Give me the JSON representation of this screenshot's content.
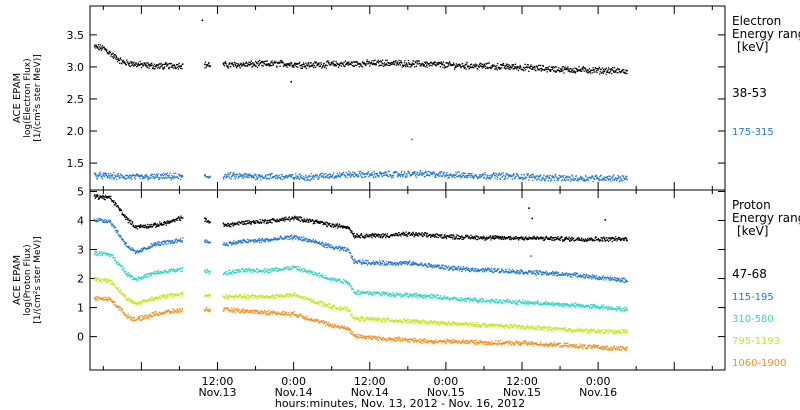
{
  "chart_data": {
    "type": "scatter",
    "xlabel": "hours:minutes, Nov. 13, 2012 - Nov. 16, 2012",
    "x_unit": "hours since Nov.13 00:00",
    "xlim": [
      -8.1,
      92.0
    ],
    "x_ticks": [
      {
        "t": 12,
        "time": "12:00",
        "day": "Nov.13"
      },
      {
        "t": 24,
        "time": "0:00",
        "day": "Nov.14"
      },
      {
        "t": 36,
        "time": "12:00",
        "day": "Nov.14"
      },
      {
        "t": 48,
        "time": "0:00",
        "day": "Nov.15"
      },
      {
        "t": 60,
        "time": "12:00",
        "day": "Nov.15"
      },
      {
        "t": 72,
        "time": "0:00",
        "day": "Nov.16"
      }
    ],
    "panels": [
      {
        "name": "electron",
        "ylabel_lines": [
          "ACE EPAM",
          "log(Electron Flux)",
          "[1/(cm²s ster MeV)]"
        ],
        "ylim": [
          1.08,
          3.95
        ],
        "yticks": [
          "1.5",
          "2.0",
          "2.5",
          "3.0",
          "3.5"
        ],
        "legend_title": [
          "Electron",
          "Energy ranges",
          "[keV]"
        ],
        "series": [
          {
            "name": "38-53",
            "color": "#000000",
            "data": [
              [
                -7.5,
                3.32
              ],
              [
                -6,
                3.3
              ],
              [
                -4.5,
                3.18
              ],
              [
                -3,
                3.08
              ],
              [
                -1,
                3.05
              ],
              [
                1,
                3.03
              ],
              [
                3,
                3.02
              ],
              [
                5,
                3.03
              ],
              [
                8,
                3.04
              ],
              [
                14,
                3.04
              ],
              [
                18,
                3.05
              ],
              [
                22,
                3.06
              ],
              [
                26,
                3.04
              ],
              [
                30,
                3.05
              ],
              [
                34,
                3.06
              ],
              [
                38,
                3.07
              ],
              [
                42,
                3.06
              ],
              [
                46,
                3.05
              ],
              [
                50,
                3.03
              ],
              [
                54,
                3.02
              ],
              [
                58,
                3.01
              ],
              [
                62,
                2.99
              ],
              [
                66,
                2.97
              ],
              [
                70,
                2.96
              ],
              [
                74,
                2.95
              ],
              [
                76.5,
                2.94
              ]
            ],
            "outliers": [
              [
                9.5,
                3.74
              ],
              [
                23.5,
                2.78
              ]
            ],
            "gaps": [
              [
                6.5,
                9.8
              ],
              [
                10.8,
                12.8
              ]
            ]
          },
          {
            "name": "175-315",
            "color": "#1f78d2",
            "data": [
              [
                -7.5,
                1.32
              ],
              [
                -4,
                1.3
              ],
              [
                0,
                1.29
              ],
              [
                4,
                1.3
              ],
              [
                8,
                1.29
              ],
              [
                14,
                1.31
              ],
              [
                20,
                1.3
              ],
              [
                26,
                1.29
              ],
              [
                32,
                1.33
              ],
              [
                38,
                1.33
              ],
              [
                44,
                1.34
              ],
              [
                50,
                1.32
              ],
              [
                56,
                1.31
              ],
              [
                60,
                1.3
              ],
              [
                64,
                1.28
              ],
              [
                68,
                1.27
              ],
              [
                72,
                1.28
              ],
              [
                76.5,
                1.27
              ]
            ],
            "outliers": [
              [
                42.5,
                1.88
              ]
            ],
            "gaps": [
              [
                6.5,
                9.8
              ],
              [
                10.8,
                12.8
              ]
            ]
          }
        ]
      },
      {
        "name": "proton",
        "ylabel_lines": [
          "ACE EPAM",
          "log(Proton Flux)",
          "[1/(cm²s ster MeV)]"
        ],
        "ylim": [
          -1.15,
          5.05
        ],
        "yticks": [
          "0",
          "1",
          "2",
          "3",
          "4",
          "5"
        ],
        "legend_title": [
          "Proton",
          "Energy ranges",
          "[keV]"
        ],
        "series": [
          {
            "name": "47-68",
            "color": "#000000",
            "data": [
              [
                -7.5,
                4.85
              ],
              [
                -5,
                4.8
              ],
              [
                -3.5,
                4.4
              ],
              [
                -2.5,
                4.1
              ],
              [
                -1,
                3.8
              ],
              [
                2,
                3.85
              ],
              [
                5,
                4.0
              ],
              [
                7,
                4.2
              ],
              [
                13,
                3.85
              ],
              [
                16,
                3.95
              ],
              [
                20,
                4.0
              ],
              [
                24,
                4.1
              ],
              [
                27,
                4.0
              ],
              [
                30,
                3.85
              ],
              [
                32.5,
                3.8
              ],
              [
                33.5,
                3.5
              ],
              [
                38,
                3.5
              ],
              [
                42,
                3.55
              ],
              [
                46,
                3.5
              ],
              [
                50,
                3.45
              ],
              [
                56,
                3.42
              ],
              [
                60,
                3.42
              ],
              [
                64,
                3.4
              ],
              [
                68,
                3.38
              ],
              [
                72,
                3.38
              ],
              [
                76.5,
                3.38
              ]
            ],
            "outliers": [
              [
                61,
                4.45
              ],
              [
                61.5,
                4.1
              ],
              [
                73,
                4.05
              ]
            ],
            "gaps": [
              [
                6.5,
                9.8
              ],
              [
                10.8,
                12.8
              ]
            ]
          },
          {
            "name": "115-195",
            "color": "#1f78d2",
            "data": [
              [
                -7.5,
                4.05
              ],
              [
                -5,
                4.0
              ],
              [
                -3.5,
                3.5
              ],
              [
                -2.5,
                3.2
              ],
              [
                -1,
                2.9
              ],
              [
                2,
                3.2
              ],
              [
                5,
                3.3
              ],
              [
                7,
                3.4
              ],
              [
                13,
                3.2
              ],
              [
                16,
                3.3
              ],
              [
                20,
                3.35
              ],
              [
                24,
                3.45
              ],
              [
                27,
                3.3
              ],
              [
                30,
                3.1
              ],
              [
                32.5,
                3.0
              ],
              [
                33.5,
                2.6
              ],
              [
                38,
                2.55
              ],
              [
                42,
                2.55
              ],
              [
                46,
                2.45
              ],
              [
                50,
                2.35
              ],
              [
                56,
                2.3
              ],
              [
                60,
                2.25
              ],
              [
                64,
                2.2
              ],
              [
                68,
                2.15
              ],
              [
                72,
                2.05
              ],
              [
                76.5,
                1.95
              ]
            ],
            "outliers": [
              [
                61.3,
                2.8
              ]
            ],
            "gaps": [
              [
                6.5,
                9.8
              ],
              [
                10.8,
                12.8
              ]
            ]
          },
          {
            "name": "310-580",
            "color": "#2fd6c8",
            "data": [
              [
                -7.5,
                2.9
              ],
              [
                -5,
                2.85
              ],
              [
                -3.5,
                2.5
              ],
              [
                -2.5,
                2.2
              ],
              [
                -1,
                2.0
              ],
              [
                2,
                2.2
              ],
              [
                5,
                2.3
              ],
              [
                7,
                2.35
              ],
              [
                13,
                2.2
              ],
              [
                16,
                2.3
              ],
              [
                20,
                2.3
              ],
              [
                24,
                2.4
              ],
              [
                27,
                2.2
              ],
              [
                30,
                2.0
              ],
              [
                32.5,
                1.9
              ],
              [
                33.5,
                1.55
              ],
              [
                38,
                1.5
              ],
              [
                42,
                1.45
              ],
              [
                46,
                1.4
              ],
              [
                50,
                1.3
              ],
              [
                56,
                1.25
              ],
              [
                60,
                1.2
              ],
              [
                64,
                1.15
              ],
              [
                68,
                1.1
              ],
              [
                72,
                1.05
              ],
              [
                76.5,
                0.95
              ]
            ],
            "outliers": [],
            "gaps": [
              [
                6.5,
                9.8
              ],
              [
                10.8,
                12.8
              ]
            ]
          },
          {
            "name": "795-1193",
            "color": "#c8e61e",
            "data": [
              [
                -7.5,
                2.0
              ],
              [
                -5,
                1.95
              ],
              [
                -3.5,
                1.6
              ],
              [
                -2.5,
                1.35
              ],
              [
                -1,
                1.15
              ],
              [
                2,
                1.35
              ],
              [
                5,
                1.45
              ],
              [
                7,
                1.5
              ],
              [
                13,
                1.4
              ],
              [
                16,
                1.4
              ],
              [
                20,
                1.4
              ],
              [
                24,
                1.45
              ],
              [
                27,
                1.25
              ],
              [
                30,
                1.05
              ],
              [
                32.5,
                0.95
              ],
              [
                33.5,
                0.65
              ],
              [
                38,
                0.6
              ],
              [
                42,
                0.55
              ],
              [
                46,
                0.5
              ],
              [
                50,
                0.45
              ],
              [
                56,
                0.4
              ],
              [
                60,
                0.35
              ],
              [
                64,
                0.3
              ],
              [
                68,
                0.25
              ],
              [
                72,
                0.2
              ],
              [
                76.5,
                0.2
              ]
            ],
            "outliers": [],
            "gaps": [
              [
                6.5,
                9.8
              ],
              [
                10.8,
                12.8
              ]
            ]
          },
          {
            "name": "1060-1900",
            "color": "#f0901e",
            "data": [
              [
                -7.5,
                1.35
              ],
              [
                -5,
                1.3
              ],
              [
                -3.5,
                1.0
              ],
              [
                -2.5,
                0.75
              ],
              [
                -1,
                0.6
              ],
              [
                2,
                0.8
              ],
              [
                5,
                0.9
              ],
              [
                7,
                0.95
              ],
              [
                13,
                0.95
              ],
              [
                16,
                0.9
              ],
              [
                20,
                0.85
              ],
              [
                24,
                0.8
              ],
              [
                27,
                0.6
              ],
              [
                30,
                0.4
              ],
              [
                32.5,
                0.3
              ],
              [
                33.5,
                0.05
              ],
              [
                38,
                -0.05
              ],
              [
                42,
                -0.1
              ],
              [
                46,
                -0.15
              ],
              [
                50,
                -0.15
              ],
              [
                56,
                -0.2
              ],
              [
                60,
                -0.2
              ],
              [
                64,
                -0.25
              ],
              [
                68,
                -0.3
              ],
              [
                72,
                -0.35
              ],
              [
                76.5,
                -0.4
              ]
            ],
            "outliers": [],
            "gaps": [
              [
                6.5,
                9.8
              ],
              [
                10.8,
                12.8
              ]
            ]
          }
        ]
      }
    ]
  }
}
